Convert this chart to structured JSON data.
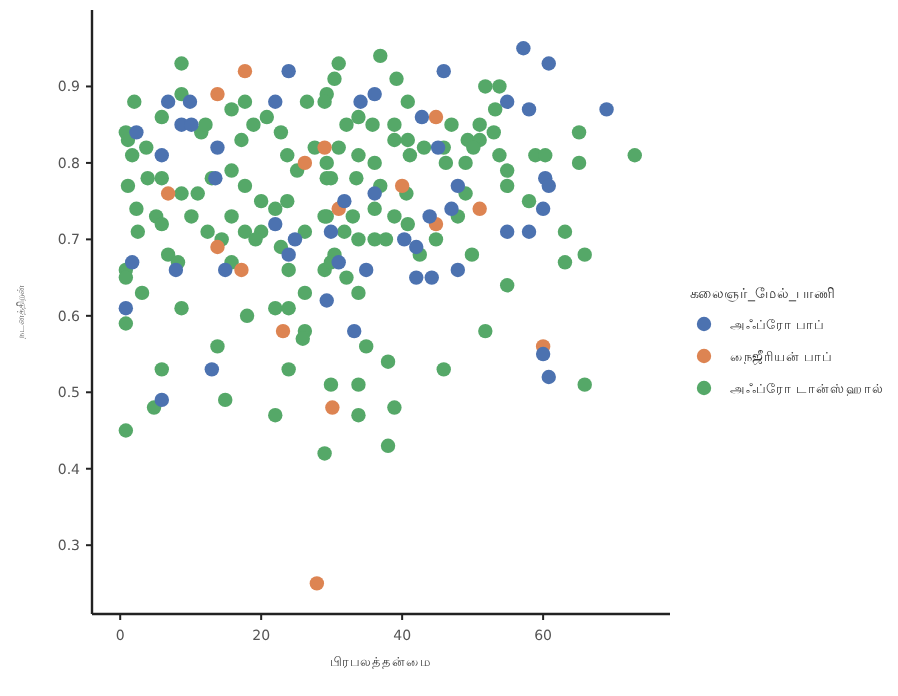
{
  "chart_data": {
    "type": "scatter",
    "xlabel": "பிரபலத்தன்மை",
    "ylabel": "நடனத்திறன்",
    "legend_title": "கலைஞர்_மேல்_பாணி",
    "legend": "right",
    "marker": "circle",
    "xlim": [
      -4,
      78
    ],
    "ylim": [
      0.21,
      1.0
    ],
    "xticks": [
      0,
      20,
      40,
      60
    ],
    "yticks": [
      0.3,
      0.4,
      0.5,
      0.6,
      0.7,
      0.8,
      0.9
    ],
    "series": [
      {
        "name": "அஃப்ரோ பாப்",
        "color": "#4c72b0",
        "x": [
          6.8,
          9.9,
          8.7,
          10.1,
          13.8,
          5.9,
          22,
          23.9,
          2.3,
          13.5,
          22,
          24.8,
          29.9,
          23.9,
          1.7,
          7.9,
          14.9,
          29.3,
          0.8,
          57.2,
          60.8,
          45.9,
          69,
          34.1,
          36.1,
          54.9,
          58,
          42.8,
          45.1,
          60.3,
          60.8,
          31.8,
          36.1,
          47.9,
          60,
          43.9,
          47,
          54.9,
          58,
          40.3,
          42,
          31,
          34.9,
          47.9,
          42,
          44.2,
          33.2,
          13,
          5.9,
          60,
          60.8
        ],
        "values": [
          0.88,
          0.88,
          0.85,
          0.85,
          0.82,
          0.81,
          0.88,
          0.92,
          0.84,
          0.78,
          0.72,
          0.7,
          0.71,
          0.68,
          0.67,
          0.66,
          0.66,
          0.62,
          0.61,
          0.95,
          0.93,
          0.92,
          0.87,
          0.88,
          0.89,
          0.88,
          0.87,
          0.86,
          0.82,
          0.78,
          0.77,
          0.75,
          0.76,
          0.77,
          0.74,
          0.73,
          0.74,
          0.71,
          0.71,
          0.7,
          0.69,
          0.67,
          0.66,
          0.66,
          0.65,
          0.65,
          0.58,
          0.53,
          0.49,
          0.55,
          0.52
        ]
      },
      {
        "name": "நைஜீரியன் பாப்",
        "color": "#dd8452",
        "x": [
          17.7,
          13.8,
          29,
          26.2,
          6.8,
          13.8,
          17.2,
          23.1,
          44.8,
          40,
          31,
          51,
          44.8,
          60,
          30.1,
          27.9
        ],
        "values": [
          0.92,
          0.89,
          0.82,
          0.8,
          0.76,
          0.69,
          0.66,
          0.58,
          0.86,
          0.77,
          0.74,
          0.74,
          0.72,
          0.56,
          0.48,
          0.25
        ]
      },
      {
        "name": "அஃப்ரோ டான்ஸ்ஹால்",
        "color": "#55a868",
        "x": [
          8.7,
          2,
          8.7,
          0.8,
          1.1,
          3.7,
          5.9,
          1.7,
          11.5,
          12.1,
          15.8,
          17.7,
          17.2,
          18.9,
          20.8,
          22.8,
          26.5,
          29.3,
          30.4,
          23.7,
          27.6,
          25.1,
          29.3,
          1.1,
          3.9,
          5.9,
          8.7,
          11,
          13,
          15.8,
          17.7,
          20,
          22,
          23.7,
          2.3,
          5.1,
          5.9,
          2.5,
          10.1,
          12.4,
          15.8,
          14.4,
          17.7,
          20,
          19.2,
          22.8,
          26.2,
          29.3,
          30.4,
          6.8,
          8.2,
          0.8,
          0.8,
          3.1,
          8.7,
          15.8,
          23.9,
          29,
          22,
          23.9,
          26.2,
          0.8,
          18,
          26.2,
          13.8,
          36.9,
          31,
          39.2,
          29,
          40.8,
          51.8,
          53.8,
          53.2,
          47,
          51,
          65.1,
          73,
          53,
          35.8,
          32.1,
          33.8,
          38.9,
          38.9,
          40.8,
          43.1,
          45.9,
          49.3,
          51,
          50.1,
          53.8,
          58.9,
          60.3,
          65.1,
          29.3,
          31,
          33.8,
          36.1,
          41.1,
          46.2,
          49,
          29.9,
          33.5,
          36.9,
          40.6,
          49,
          54.9,
          54.9,
          58,
          29,
          33,
          36.1,
          38.9,
          40.8,
          47.9,
          31.8,
          33.8,
          36.1,
          37.7,
          42.5,
          44.8,
          49.9,
          63.1,
          65.9,
          63.1,
          29.9,
          32.1,
          33.8,
          54.9,
          51.8,
          34.9,
          25.9,
          23.9,
          5.9,
          29.9,
          4.8,
          14.9,
          22,
          0.8,
          29,
          38,
          45.9,
          33.8,
          33.8,
          38.9,
          38,
          65.9
        ],
        "values": [
          0.93,
          0.88,
          0.89,
          0.84,
          0.83,
          0.82,
          0.86,
          0.81,
          0.84,
          0.85,
          0.87,
          0.88,
          0.83,
          0.85,
          0.86,
          0.84,
          0.88,
          0.89,
          0.91,
          0.81,
          0.82,
          0.79,
          0.78,
          0.77,
          0.78,
          0.78,
          0.76,
          0.76,
          0.78,
          0.79,
          0.77,
          0.75,
          0.74,
          0.75,
          0.74,
          0.73,
          0.72,
          0.71,
          0.73,
          0.71,
          0.73,
          0.7,
          0.71,
          0.71,
          0.7,
          0.69,
          0.71,
          0.73,
          0.68,
          0.68,
          0.67,
          0.66,
          0.65,
          0.63,
          0.61,
          0.67,
          0.66,
          0.66,
          0.61,
          0.61,
          0.63,
          0.59,
          0.6,
          0.58,
          0.56,
          0.94,
          0.93,
          0.91,
          0.88,
          0.88,
          0.9,
          0.9,
          0.87,
          0.85,
          0.85,
          0.84,
          0.81,
          0.84,
          0.85,
          0.85,
          0.86,
          0.85,
          0.83,
          0.83,
          0.82,
          0.82,
          0.83,
          0.83,
          0.82,
          0.81,
          0.81,
          0.81,
          0.8,
          0.8,
          0.82,
          0.81,
          0.8,
          0.81,
          0.8,
          0.8,
          0.78,
          0.78,
          0.77,
          0.76,
          0.76,
          0.79,
          0.77,
          0.75,
          0.73,
          0.73,
          0.74,
          0.73,
          0.72,
          0.73,
          0.71,
          0.7,
          0.7,
          0.7,
          0.68,
          0.7,
          0.68,
          0.71,
          0.68,
          0.67,
          0.67,
          0.65,
          0.63,
          0.64,
          0.58,
          0.56,
          0.57,
          0.53,
          0.53,
          0.51,
          0.48,
          0.49,
          0.47,
          0.45,
          0.42,
          0.54,
          0.53,
          0.51,
          0.47,
          0.48,
          0.43,
          0.51
        ]
      }
    ]
  }
}
